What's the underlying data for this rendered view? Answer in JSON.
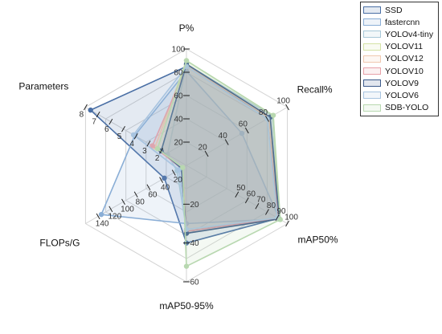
{
  "chart_data": {
    "type": "radar",
    "axes": [
      {
        "label": "P%",
        "range": [
          0,
          100
        ],
        "ticks": [
          20,
          40,
          60,
          80,
          100
        ]
      },
      {
        "label": "Recall%",
        "range": [
          0,
          100
        ],
        "ticks": [
          20,
          40,
          60,
          80,
          100
        ]
      },
      {
        "label": "mAP50%",
        "range": [
          0,
          100
        ],
        "ticks": [
          50,
          60,
          70,
          80,
          90,
          100
        ]
      },
      {
        "label": "mAP50-95%",
        "range": [
          0,
          60
        ],
        "ticks": [
          20,
          40,
          60
        ]
      },
      {
        "label": "FLOPs/G",
        "range": [
          0,
          160
        ],
        "ticks": [
          20,
          40,
          60,
          80,
          100,
          120,
          140
        ]
      },
      {
        "label": "Parameters",
        "range": [
          0,
          8
        ],
        "ticks": [
          2,
          3,
          4,
          5,
          6,
          7,
          8
        ]
      }
    ],
    "series": [
      {
        "name": "SSD",
        "values": [
          85,
          82,
          91,
          40,
          35,
          7.6
        ],
        "color": "#4a6fa5"
      },
      {
        "name": "fastercnn",
        "values": [
          81,
          55,
          92,
          30,
          135,
          4.1
        ],
        "color": "#8aaed6"
      },
      {
        "name": "YOLOv4-tiny",
        "values": [
          87,
          85,
          92,
          33,
          15,
          1.5
        ],
        "color": "#a8c8d8"
      },
      {
        "name": "YOLOV11",
        "values": [
          90,
          86,
          92,
          35,
          6,
          2.5
        ],
        "color": "#d4e3a6"
      },
      {
        "name": "YOLOV12",
        "values": [
          86,
          82,
          90,
          33,
          6,
          2.5
        ],
        "color": "#f0c8b0"
      },
      {
        "name": "YOLOV10",
        "values": [
          85,
          80,
          91,
          34,
          8,
          2.7
        ],
        "color": "#e7a0a8"
      },
      {
        "name": "YOLOV9",
        "values": [
          87,
          83,
          92,
          35,
          8,
          2.0
        ],
        "color": "#3c5a8a"
      },
      {
        "name": "YOLOV6",
        "values": [
          85,
          80,
          90,
          33,
          12,
          4.2
        ],
        "color": "#a8c4e0"
      },
      {
        "name": "SDB-YOLO",
        "values": [
          90,
          86,
          93,
          52,
          6,
          2.3
        ],
        "color": "#b8d8b0"
      }
    ],
    "legend_position": "top-right",
    "grid": true
  }
}
